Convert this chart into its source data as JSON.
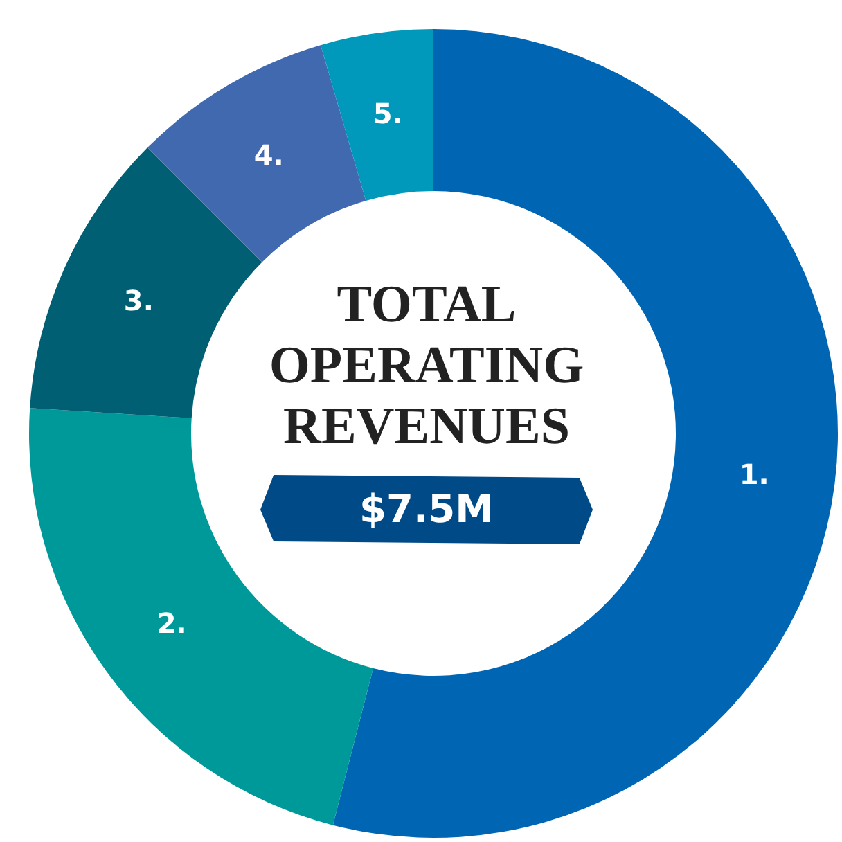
{
  "chart_data": {
    "type": "donut",
    "title": "TOTAL OPERATING REVENUES",
    "subtitle": "$7.5M",
    "categories": [
      "1.",
      "2.",
      "3.",
      "4.",
      "5."
    ],
    "values": [
      54,
      22,
      11.5,
      8,
      4.5
    ],
    "colors": [
      "#0066b3",
      "#009999",
      "#005f73",
      "#4169b0",
      "#0099bb"
    ]
  }
}
